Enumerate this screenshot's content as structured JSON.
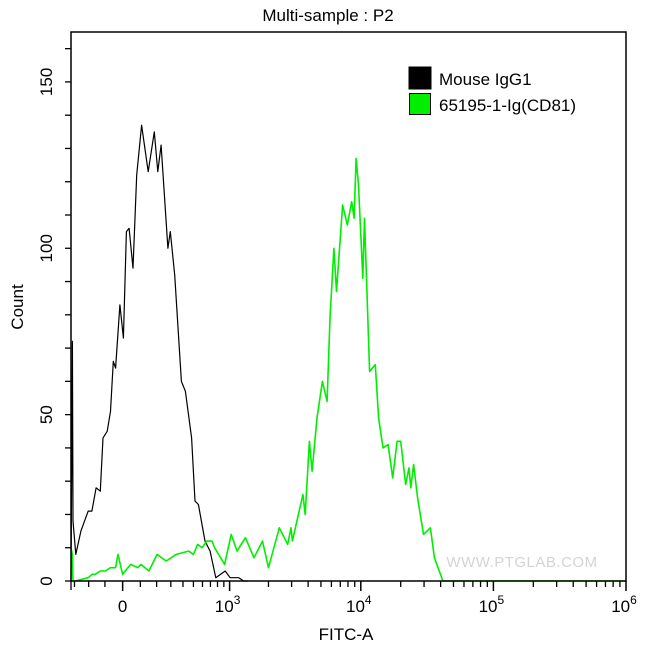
{
  "chart_data": {
    "type": "line",
    "subtype": "histogram-overlay",
    "title": "Multi-sample : P2",
    "xlabel": "FITC-A",
    "ylabel": "Count",
    "xscale": "biexponential",
    "x_cofactor": 320,
    "xlim": [
      -327,
      1000000
    ],
    "ylim": [
      0,
      165
    ],
    "grid": false,
    "legend_position": "top-right",
    "watermark": "WWW.PTGLAB.COM",
    "y_ticks": [
      {
        "value": 0,
        "label": "0"
      },
      {
        "value": 50,
        "label": "50"
      },
      {
        "value": 100,
        "label": "100"
      },
      {
        "value": 150,
        "label": "150"
      }
    ],
    "y_minor_step": 10,
    "x_ticks": [
      {
        "value": 0,
        "label": "0"
      },
      {
        "value": 1000,
        "base": "10",
        "exp": "3"
      },
      {
        "value": 10000,
        "base": "10",
        "exp": "4"
      },
      {
        "value": 100000,
        "base": "10",
        "exp": "5"
      },
      {
        "value": 1000000,
        "base": "10",
        "exp": "6"
      }
    ],
    "x_minor_ticks": [
      -300,
      -200,
      -100,
      100,
      200,
      300,
      400,
      500,
      600,
      700,
      800,
      900,
      2000,
      3000,
      4000,
      5000,
      6000,
      7000,
      8000,
      9000,
      20000,
      30000,
      40000,
      50000,
      60000,
      70000,
      80000,
      90000,
      200000,
      300000,
      400000,
      500000,
      600000,
      700000,
      800000,
      900000
    ],
    "series": [
      {
        "name": "Mouse IgG1",
        "color": "#000000",
        "x": [
          -327,
          -316,
          -311,
          -290,
          -253,
          -203,
          -179,
          -153,
          -127,
          -111,
          -87,
          -68,
          -52,
          -39,
          -15,
          4,
          21,
          36,
          58,
          79,
          107,
          147,
          185,
          208,
          230,
          278,
          296,
          330,
          386,
          422,
          482,
          516,
          553,
          630,
          695,
          775,
          922,
          1010,
          1180,
          1290,
          1400
        ],
        "y": [
          0,
          72,
          18,
          8,
          15,
          21,
          21,
          28,
          27,
          43,
          45,
          51,
          66,
          64,
          83,
          73,
          105,
          106,
          94,
          122,
          137,
          123,
          135,
          123,
          131,
          100,
          105,
          92,
          60,
          57,
          43,
          24,
          23,
          12,
          9,
          1,
          3,
          1,
          1,
          0,
          0
        ]
      },
      {
        "name": "65195-1-Ig(CD81)",
        "color": "#00ee00",
        "x": [
          -327,
          -316,
          -311,
          -295,
          -203,
          -177,
          -158,
          -127,
          -97,
          -68,
          -39,
          -26,
          0,
          45,
          85,
          103,
          151,
          203,
          266,
          343,
          452,
          501,
          545,
          594,
          651,
          720,
          758,
          912,
          1030,
          1145,
          1330,
          1550,
          1800,
          2000,
          2420,
          2800,
          2970,
          3040,
          3650,
          3800,
          4090,
          4290,
          4670,
          5130,
          5570,
          5850,
          6270,
          6560,
          7290,
          7910,
          8540,
          8900,
          9210,
          9600,
          10360,
          10660,
          11650,
          12870,
          13630,
          14700,
          16060,
          17400,
          18800,
          20000,
          21800,
          23100,
          23850,
          25000,
          26800,
          29700,
          33500,
          35900,
          41600,
          60000,
          300000,
          500000,
          1000000
        ],
        "y": [
          10,
          8,
          0,
          0,
          1,
          2,
          2,
          3,
          3,
          4,
          4,
          8,
          2,
          5,
          4,
          5,
          3,
          8,
          6,
          8,
          9,
          8,
          11,
          10,
          12,
          12,
          10,
          5,
          14,
          9,
          13,
          7,
          12,
          4,
          16,
          11,
          16,
          12,
          26,
          20,
          42,
          33,
          49,
          60,
          54,
          79,
          100,
          87,
          113,
          107,
          114,
          109,
          127,
          119,
          91,
          109,
          63,
          65,
          49,
          40,
          41,
          31,
          42,
          42,
          29,
          34,
          28,
          35,
          25,
          14,
          16,
          7,
          0,
          0,
          0,
          0,
          0
        ]
      }
    ]
  }
}
